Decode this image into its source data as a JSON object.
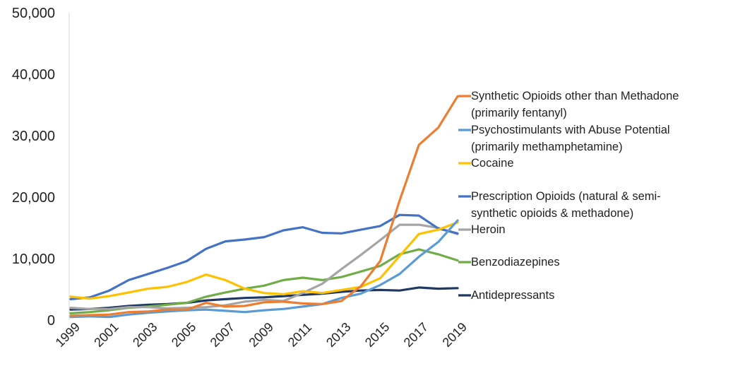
{
  "chart_data": {
    "type": "line",
    "x": [
      1999,
      2000,
      2001,
      2002,
      2003,
      2004,
      2005,
      2006,
      2007,
      2008,
      2009,
      2010,
      2011,
      2012,
      2013,
      2014,
      2015,
      2016,
      2017,
      2018,
      2019
    ],
    "x_tick_labels": [
      "1999",
      "2001",
      "2003",
      "2005",
      "2007",
      "2009",
      "2011",
      "2013",
      "2015",
      "2017",
      "2019"
    ],
    "y_tick_labels": [
      "0",
      "10,000",
      "20,000",
      "30,000",
      "40,000",
      "50,000"
    ],
    "ylim": [
      0,
      50000
    ],
    "grid": false,
    "legend_position": "right",
    "series": [
      {
        "name_lines": [
          "Synthetic Opioids other than Methadone",
          "(primarily fentanyl)"
        ],
        "color": "#ED7D31",
        "values": [
          700,
          800,
          900,
          1300,
          1400,
          1700,
          1700,
          2800,
          2200,
          2300,
          2900,
          3000,
          2700,
          2600,
          3100,
          5500,
          9600,
          19400,
          28500,
          31300,
          36400
        ]
      },
      {
        "name_lines": [
          "Psychostimulants with Abuse Potential",
          "(primarily methamphetamine)"
        ],
        "color": "#5B9BD5",
        "values": [
          500,
          600,
          500,
          900,
          1200,
          1400,
          1600,
          1700,
          1500,
          1300,
          1600,
          1800,
          2200,
          2600,
          3600,
          4300,
          5700,
          7500,
          10300,
          12700,
          16200
        ]
      },
      {
        "name_lines": [
          "Cocaine"
        ],
        "color": "#FFC000",
        "values": [
          3800,
          3500,
          3900,
          4500,
          5100,
          5400,
          6200,
          7400,
          6500,
          5100,
          4400,
          4200,
          4700,
          4400,
          4900,
          5400,
          6800,
          10400,
          14000,
          14700,
          15900
        ]
      },
      {
        "name_lines": [
          "Prescription Opioids (natural & semi-",
          "synthetic opioids & methadone)"
        ],
        "color": "#4472C4",
        "values": [
          3400,
          3700,
          4800,
          6500,
          7500,
          8500,
          9600,
          11600,
          12800,
          13100,
          13500,
          14600,
          15100,
          14200,
          14100,
          14700,
          15300,
          17100,
          17000,
          14900,
          14100
        ]
      },
      {
        "name_lines": [
          "Heroin"
        ],
        "color": "#A5A5A5",
        "values": [
          2000,
          1800,
          1800,
          2100,
          2100,
          1900,
          2000,
          2100,
          2400,
          3000,
          3300,
          3100,
          4400,
          5900,
          8300,
          10600,
          13000,
          15500,
          15500,
          15000,
          14000
        ]
      },
      {
        "name_lines": [
          "Benzodiazepines"
        ],
        "color": "#70AD47",
        "values": [
          1100,
          1300,
          1600,
          2000,
          2200,
          2500,
          2800,
          3800,
          4500,
          5100,
          5600,
          6500,
          6900,
          6500,
          7000,
          7900,
          8800,
          10700,
          11500,
          10700,
          9700
        ]
      },
      {
        "name_lines": [
          "Antidepressants"
        ],
        "color": "#203864",
        "values": [
          1700,
          1800,
          2000,
          2300,
          2500,
          2600,
          2800,
          3200,
          3400,
          3600,
          3700,
          3900,
          4100,
          4300,
          4600,
          4800,
          4900,
          4800,
          5300,
          5100,
          5200
        ]
      }
    ]
  }
}
